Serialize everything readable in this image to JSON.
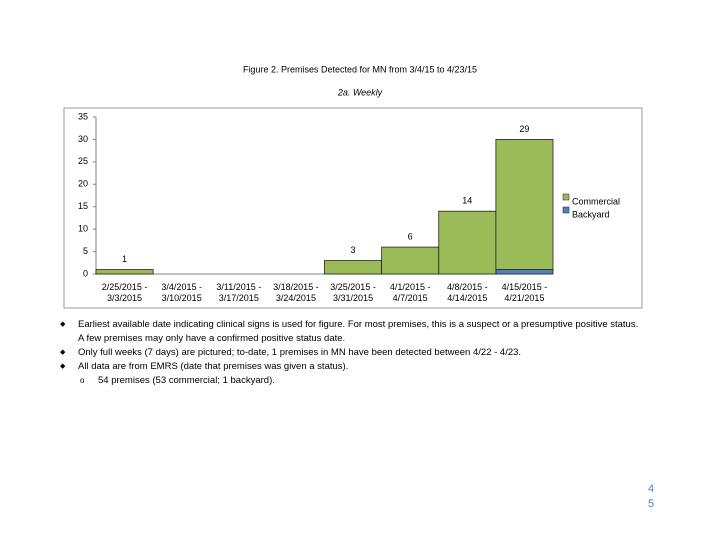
{
  "chart_data": {
    "type": "stacked_bar",
    "title": "Figure 2. Premises Detected for MN from 3/4/15 to 4/23/15",
    "subtitle": "2a. Weekly",
    "categories": [
      "2/25/2015 -\n3/3/2015",
      "3/4/2015 -\n3/10/2015",
      "3/11/2015 -\n3/17/2015",
      "3/18/2015 -\n3/24/2015",
      "3/25/2015 -\n3/31/2015",
      "4/1/2015 -\n4/7/2015",
      "4/8/2015 -\n4/14/2015",
      "4/15/2015 -\n4/21/2015"
    ],
    "series": [
      {
        "name": "Backyard",
        "color": "#4f81bd",
        "values": [
          0,
          0,
          0,
          0,
          0,
          0,
          0,
          1
        ]
      },
      {
        "name": "Commercial",
        "color": "#9bbb59",
        "values": [
          1,
          0,
          0,
          0,
          3,
          6,
          14,
          29
        ],
        "value_labels": [
          "1",
          null,
          null,
          null,
          "3",
          "6",
          "14",
          "29"
        ]
      }
    ],
    "ylim": [
      0,
      35
    ],
    "yticks": [
      0,
      5,
      10,
      15,
      20,
      25,
      30,
      35
    ],
    "grid": false,
    "legend": "right"
  },
  "notes": [
    {
      "text": "Earliest available date indicating clinical signs is used for figure. For most premises, this is a suspect or a presumptive positive status. A few premises may only have a confirmed positive status date.",
      "sub": []
    },
    {
      "text": "Only full weeks (7 days) are pictured; to-date, 1 premises in MN have been detected between 4/22 - 4/23.",
      "sub": []
    },
    {
      "text": "All data are from EMRS (date that premises was given a status).",
      "sub": [
        "54 premises (53 commercial; 1 backyard)."
      ]
    }
  ],
  "page_number": [
    "4",
    "5"
  ]
}
